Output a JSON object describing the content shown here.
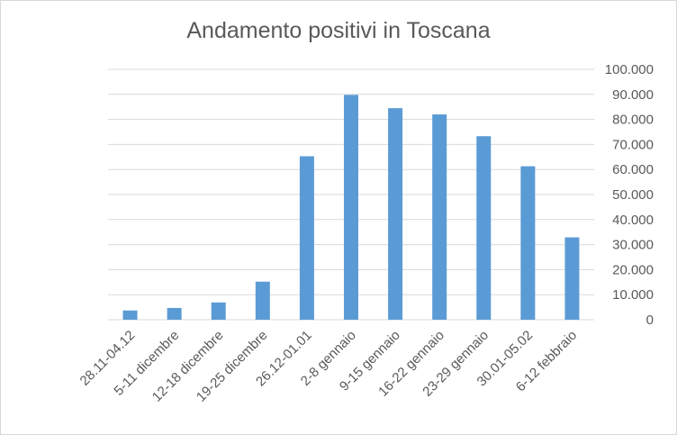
{
  "chart_data": {
    "type": "bar",
    "title": "Andamento positivi in Toscana",
    "xlabel": "",
    "ylabel": "",
    "categories": [
      "28.11-04.12",
      "5-11 dicembre",
      "12-18 dicembre",
      "19-25 dicembre",
      "26.12-01.01",
      "2-8 gennaio",
      "9-15 gennaio",
      "16-22 gennaio",
      "23-29 gennaio",
      "30.01-05.02",
      "6-12 febbraio"
    ],
    "values": [
      3700,
      4700,
      6900,
      15200,
      65300,
      89800,
      84500,
      82000,
      73300,
      61300,
      32900
    ],
    "ylim": [
      0,
      100000
    ],
    "yticks": [
      "0",
      "10.000",
      "20.000",
      "30.000",
      "40.000",
      "50.000",
      "60.000",
      "70.000",
      "80.000",
      "90.000",
      "100.000"
    ],
    "y_axis_side": "right",
    "grid": true,
    "legend": "none",
    "bar_color": "#5b9bd5",
    "grid_color": "#d9d9d9"
  }
}
